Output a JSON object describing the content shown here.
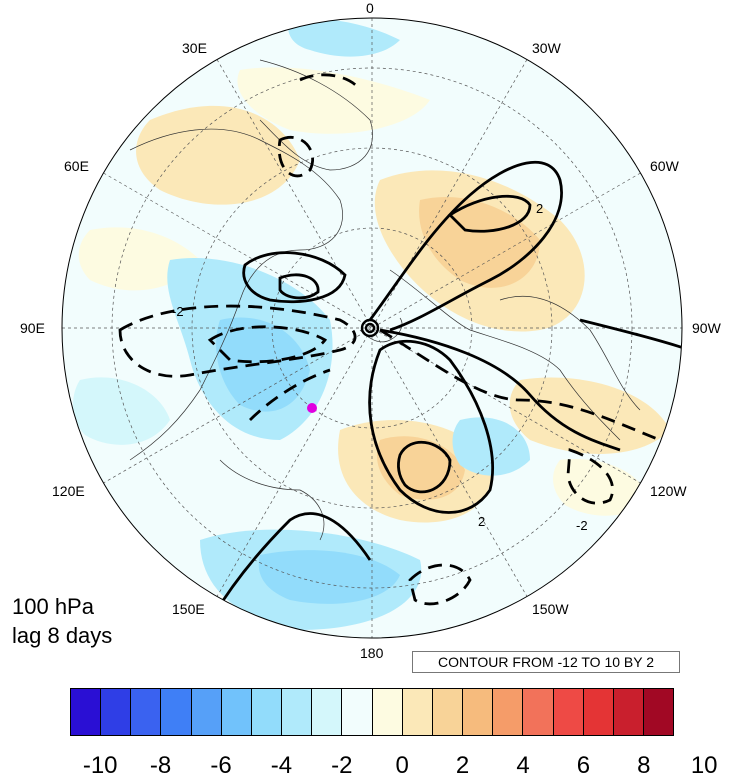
{
  "panel": {
    "level_label": "100 hPa",
    "lag_label": "lag 8 days",
    "contour_info": "CONTOUR FROM -12 TO 10 BY 2",
    "contour_labels": [
      "-2",
      "2"
    ]
  },
  "longitude_labels": [
    "0",
    "30W",
    "60W",
    "90W",
    "120W",
    "150W",
    "180",
    "150E",
    "120E",
    "90E",
    "60E",
    "30E"
  ],
  "projection": "north polar stereographic",
  "colorbar": {
    "ticks": [
      "-10",
      "-8",
      "-6",
      "-4",
      "-2",
      "0",
      "2",
      "4",
      "6",
      "8",
      "10"
    ],
    "colors": [
      "#2a0fd4",
      "#2f3ee6",
      "#3a62f0",
      "#3f7ff6",
      "#56a0f8",
      "#71c2fb",
      "#92dcfb",
      "#b0eafb",
      "#d4f7fb",
      "#f2fdfd",
      "#fdfbe1",
      "#fbe8b8",
      "#f8d398",
      "#f6bb7d",
      "#f59c69",
      "#f2725a",
      "#ee4a45",
      "#e43435",
      "#c91f2d",
      "#a10824"
    ]
  },
  "marker_color": "#e000e0"
}
